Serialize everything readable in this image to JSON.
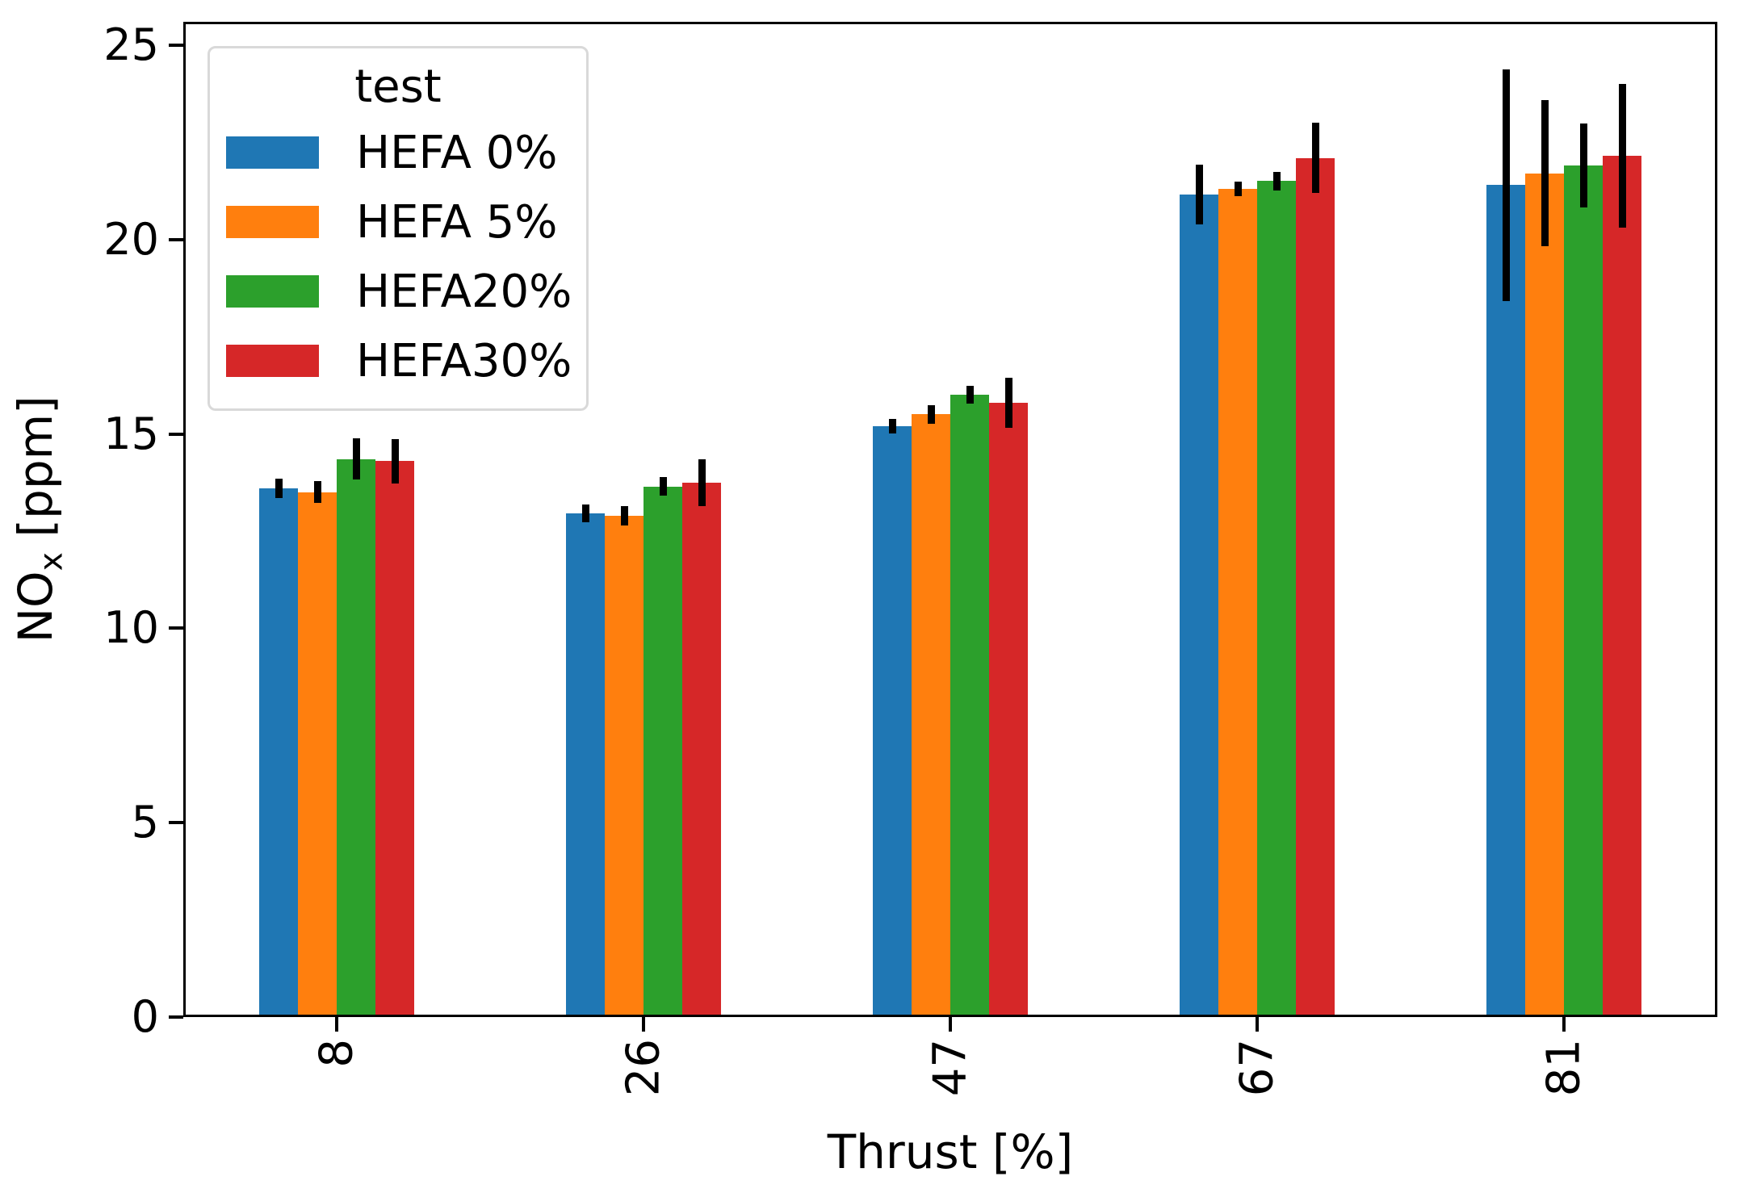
{
  "chart_data": {
    "type": "bar",
    "title": "",
    "xlabel": "Thrust [%]",
    "ylabel": "NOx [ppm]",
    "ylabel_parts": {
      "prefix": "NO",
      "sub": "x",
      "suffix": " [ppm]"
    },
    "categories": [
      "8",
      "26",
      "47",
      "67",
      "81"
    ],
    "series": [
      {
        "name": "HEFA 0%",
        "color": "#1f77b4",
        "values": [
          13.6,
          12.95,
          15.2,
          21.15,
          21.4
        ],
        "errors": [
          0.25,
          0.23,
          0.18,
          0.77,
          2.98
        ]
      },
      {
        "name": "HEFA 5%",
        "color": "#ff7f0e",
        "values": [
          13.5,
          12.9,
          15.5,
          21.3,
          21.7
        ],
        "errors": [
          0.28,
          0.25,
          0.24,
          0.19,
          1.88
        ]
      },
      {
        "name": "HEFA20%",
        "color": "#2ca02c",
        "values": [
          14.35,
          13.65,
          16.0,
          21.5,
          21.9
        ],
        "errors": [
          0.53,
          0.23,
          0.23,
          0.23,
          1.08
        ]
      },
      {
        "name": "HEFA30%",
        "color": "#d62728",
        "values": [
          14.3,
          13.75,
          15.8,
          22.1,
          22.15
        ],
        "errors": [
          0.57,
          0.6,
          0.65,
          0.9,
          1.85
        ]
      }
    ],
    "legend": {
      "title": "test",
      "position": "upper left"
    },
    "yticks": [
      0,
      5,
      10,
      15,
      20,
      25
    ],
    "ylim": [
      0,
      25.6
    ],
    "grid": false,
    "error_color": "#000000",
    "background_color": "#ffffff",
    "spine_color": "#000000"
  }
}
